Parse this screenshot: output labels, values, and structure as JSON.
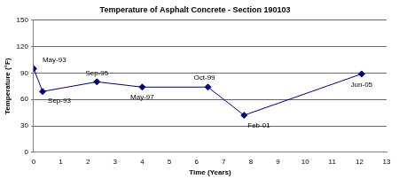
{
  "chart_data": {
    "type": "line",
    "title": "Temperature of Asphalt Concrete - Section 190103",
    "x_label": "Time (Years)",
    "y_label": "Temperature (°F)",
    "x": [
      0,
      0.33,
      2.33,
      4.0,
      6.42,
      7.75,
      12.08
    ],
    "values": [
      95,
      69,
      80,
      74,
      74,
      42,
      89
    ],
    "point_labels": [
      "May-93",
      "Sep-93",
      "Sep-95",
      "May-97",
      "Oct-99",
      "Feb-01",
      "Jun-05"
    ],
    "color": "#000080",
    "marker": "diamond",
    "line_style": "solid",
    "xlim": [
      0,
      13
    ],
    "xticks": [
      0,
      1,
      2,
      3,
      4,
      5,
      6,
      7,
      8,
      9,
      10,
      11,
      12,
      13
    ],
    "ylim": [
      0,
      150
    ],
    "yticks": [
      0,
      30,
      60,
      90,
      120,
      150
    ],
    "grid": true
  }
}
